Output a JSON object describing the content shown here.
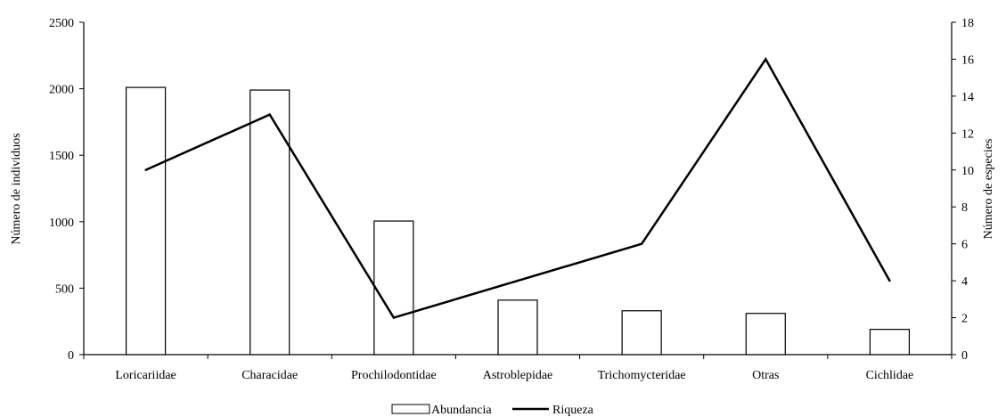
{
  "chart_data": {
    "type": "bar+line",
    "categories": [
      "Loricariidae",
      "Characidae",
      "Prochilodontidae",
      "Astroblepidae",
      "Trichomycteridae",
      "Otras",
      "Cichlidae"
    ],
    "series": [
      {
        "name": "Abundancia",
        "type": "bar",
        "axis": "left",
        "values": [
          2010,
          1990,
          1005,
          410,
          330,
          310,
          190
        ]
      },
      {
        "name": "Riqueza",
        "type": "line",
        "axis": "right",
        "values": [
          10,
          13,
          2,
          4,
          6,
          16,
          4
        ]
      }
    ],
    "ylabel_left": "Número de individuos",
    "ylabel_right": "Número de especies",
    "ylim_left": [
      0,
      2500
    ],
    "ylim_right": [
      0,
      18
    ],
    "yticks_left": [
      0,
      500,
      1000,
      1500,
      2000,
      2500
    ],
    "yticks_right": [
      0,
      2,
      4,
      6,
      8,
      10,
      12,
      14,
      16,
      18
    ],
    "grid": false,
    "legend_position": "bottom-center",
    "colors": {
      "bar_fill": "#ffffff",
      "bar_stroke": "#000000",
      "line": "#000000"
    }
  }
}
